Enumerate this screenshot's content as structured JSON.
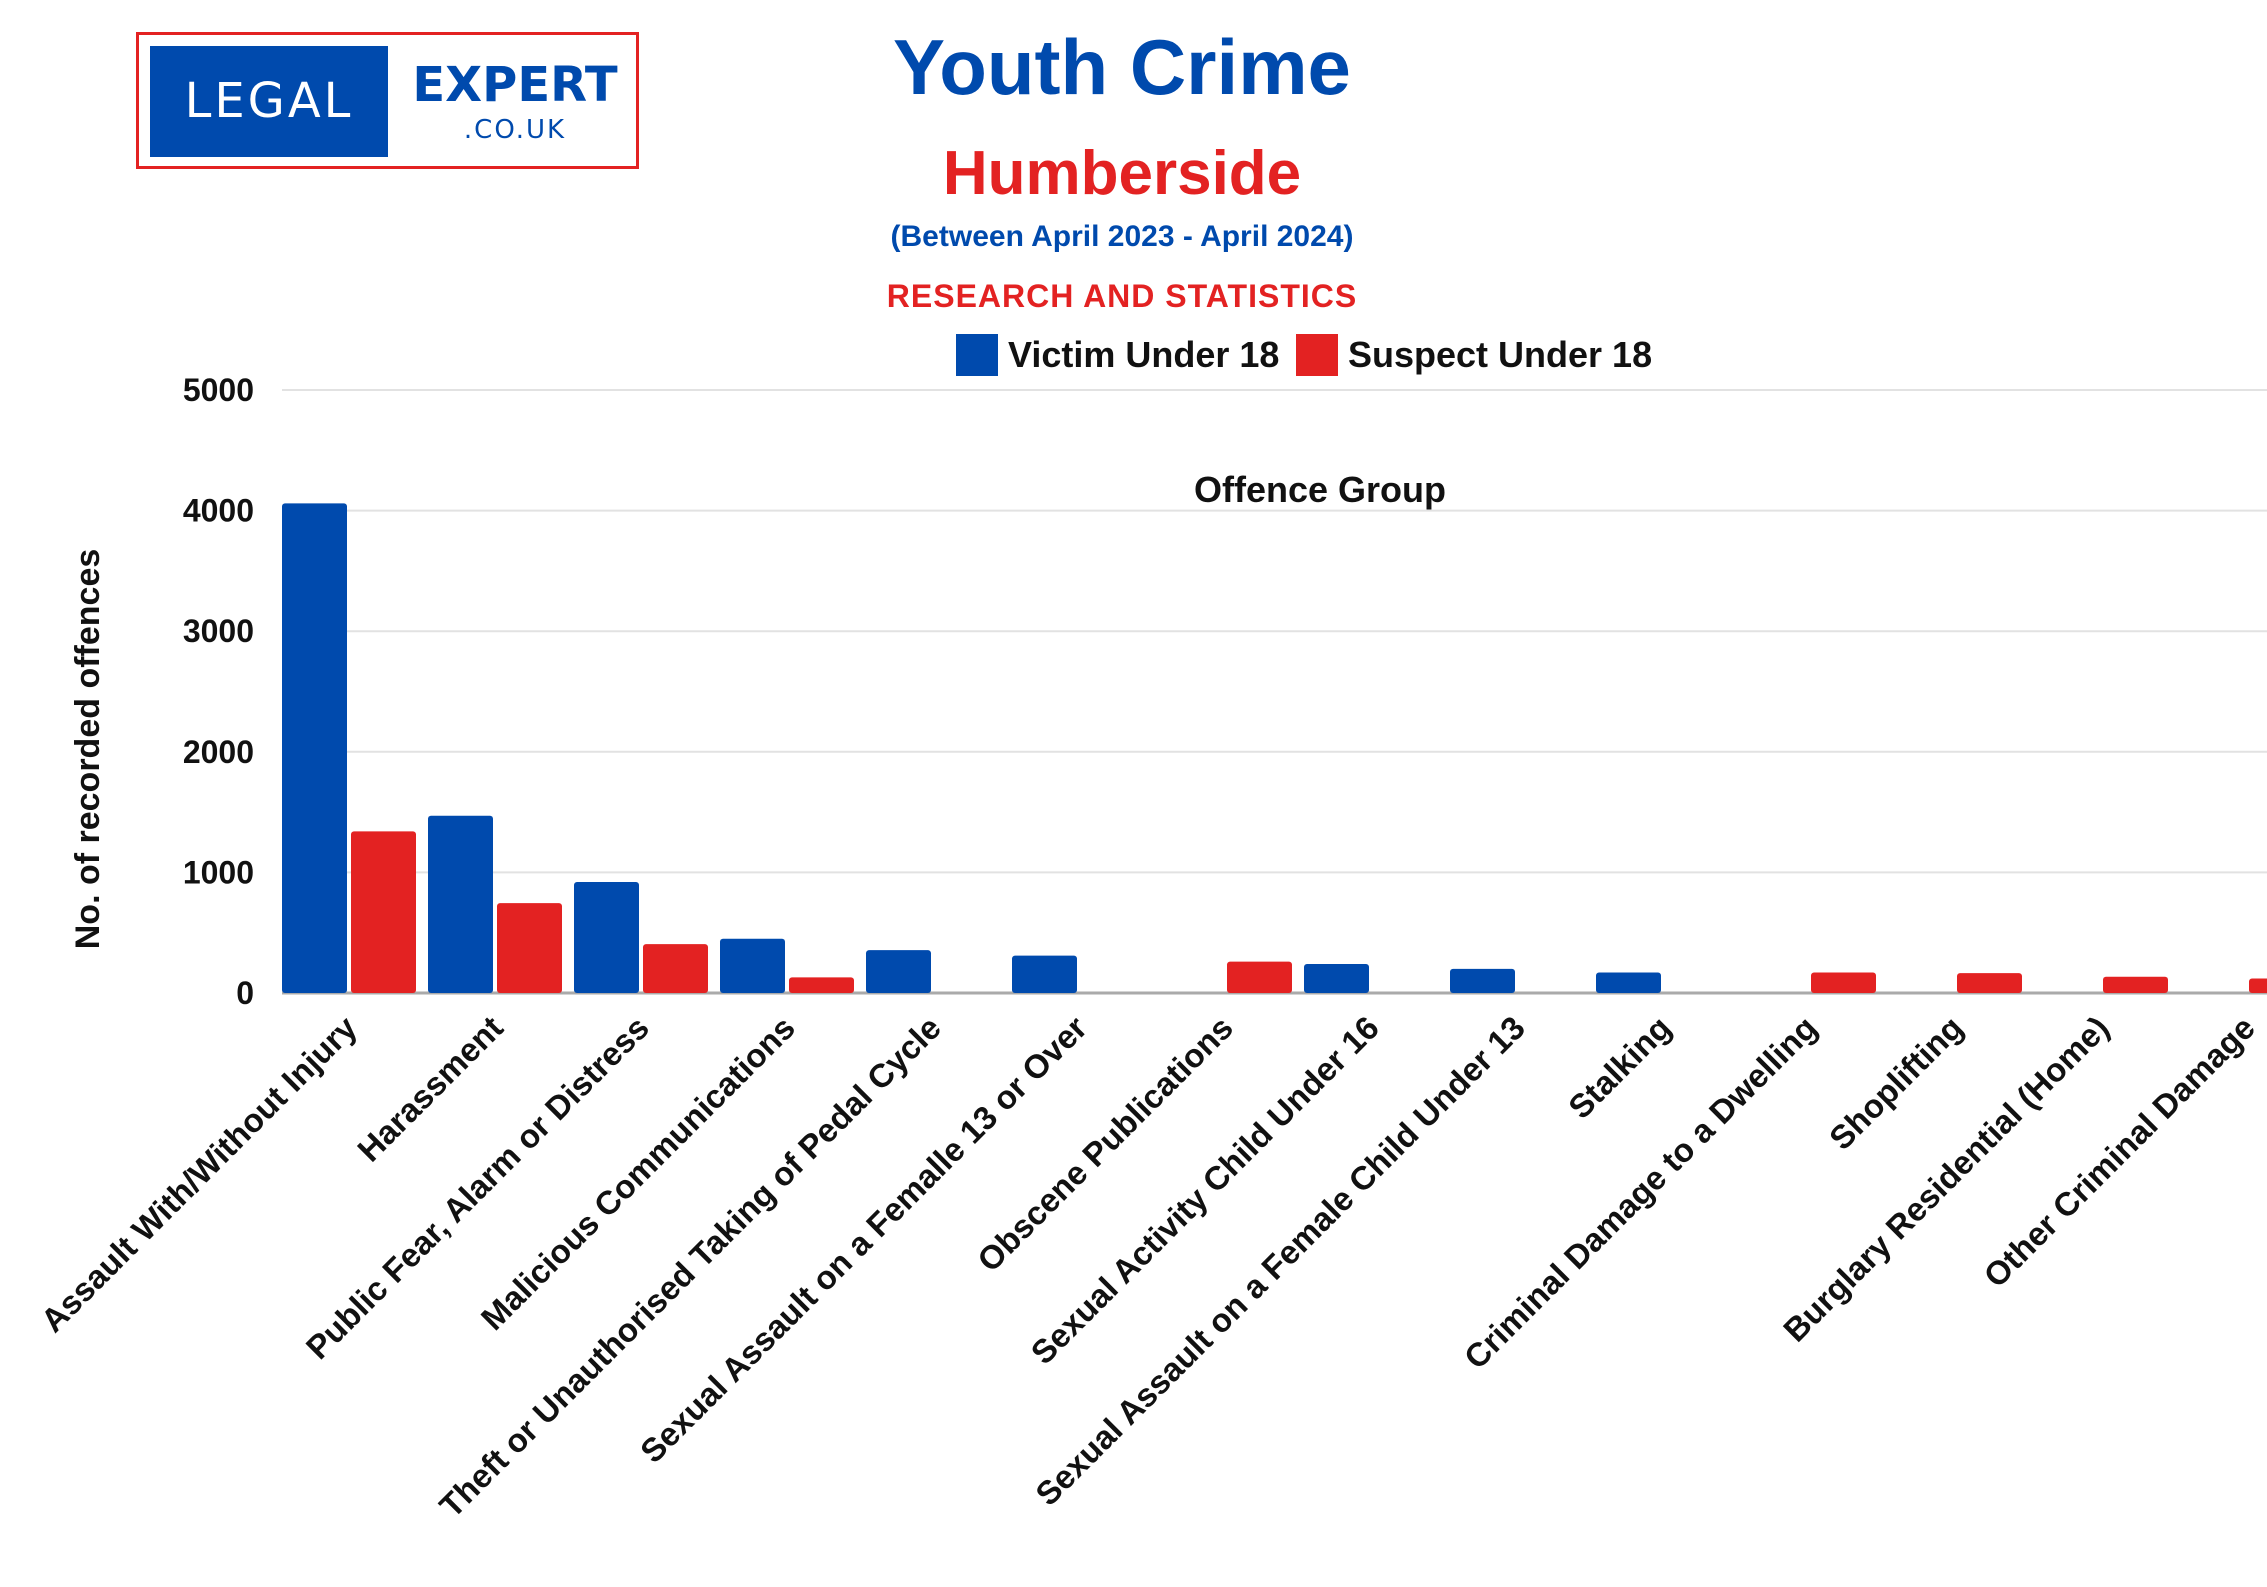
{
  "logo": {
    "word1": "LEGAL",
    "word2": "EXPERT",
    "domain": ".CO.UK"
  },
  "header": {
    "title": "Youth Crime",
    "region": "Humberside",
    "period": "(Between April 2023 - April 2024)",
    "tagline": "RESEARCH AND STATISTICS"
  },
  "chart_data": {
    "type": "bar",
    "title": "Offence Group",
    "xlabel": "",
    "ylabel": "No. of recorded offences",
    "ylim": [
      0,
      5000
    ],
    "yticks": [
      "0",
      "1000",
      "2000",
      "3000",
      "4000",
      "5000"
    ],
    "grid": true,
    "legend_position": "top-center",
    "categories": [
      "Assault With/Without Injury",
      "Harassment",
      "Public Fear, Alarm or Distress",
      "Malicious Communications",
      "Theft or Unauthorised Taking of Pedal Cycle",
      "Sexual Assault on a Femalle 13 or Over",
      "Obscene Publications",
      "Sexual Activity Child Under 16",
      "Sexual Assault on a Female Child Under 13",
      "Stalking",
      "Criminal Damage to a Dwelling",
      "Shoplifting",
      "Burglary Residential (Home)",
      "Other Criminal Damage"
    ],
    "series": [
      {
        "name": "Victim Under 18",
        "color": "#004aad",
        "values": [
          4060,
          1470,
          920,
          450,
          355,
          310,
          0,
          240,
          200,
          170,
          0,
          0,
          0,
          0
        ]
      },
      {
        "name": "Suspect Under 18",
        "color": "#e32222",
        "values": [
          1340,
          745,
          405,
          130,
          0,
          0,
          260,
          0,
          0,
          0,
          170,
          165,
          135,
          120
        ]
      }
    ]
  }
}
